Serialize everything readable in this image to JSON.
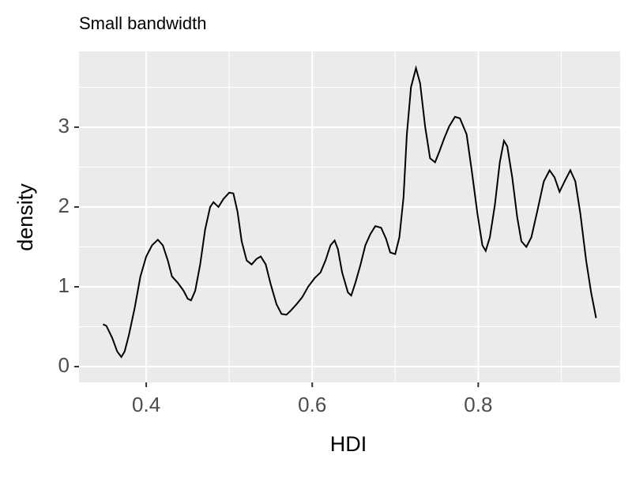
{
  "chart_data": {
    "type": "line",
    "title": "Small bandwidth",
    "xlabel": "HDI",
    "ylabel": "density",
    "x": [
      0.348,
      0.352,
      0.359,
      0.365,
      0.37,
      0.374,
      0.379,
      0.386,
      0.393,
      0.4,
      0.407,
      0.414,
      0.42,
      0.426,
      0.431,
      0.438,
      0.445,
      0.45,
      0.454,
      0.459,
      0.465,
      0.471,
      0.477,
      0.481,
      0.487,
      0.493,
      0.5,
      0.505,
      0.51,
      0.515,
      0.521,
      0.527,
      0.533,
      0.538,
      0.544,
      0.55,
      0.557,
      0.563,
      0.569,
      0.574,
      0.581,
      0.588,
      0.595,
      0.603,
      0.61,
      0.616,
      0.622,
      0.627,
      0.631,
      0.636,
      0.643,
      0.647,
      0.652,
      0.658,
      0.664,
      0.67,
      0.676,
      0.683,
      0.689,
      0.694,
      0.7,
      0.705,
      0.71,
      0.714,
      0.719,
      0.725,
      0.73,
      0.736,
      0.742,
      0.748,
      0.753,
      0.759,
      0.765,
      0.772,
      0.778,
      0.786,
      0.792,
      0.799,
      0.805,
      0.809,
      0.814,
      0.82,
      0.826,
      0.831,
      0.835,
      0.841,
      0.847,
      0.852,
      0.858,
      0.864,
      0.871,
      0.879,
      0.886,
      0.892,
      0.898,
      0.904,
      0.911,
      0.917,
      0.923,
      0.93,
      0.936,
      0.942
    ],
    "series": [
      {
        "name": "density",
        "color": "#000000",
        "values": [
          0.53,
          0.51,
          0.36,
          0.19,
          0.12,
          0.19,
          0.39,
          0.73,
          1.13,
          1.38,
          1.52,
          1.59,
          1.52,
          1.33,
          1.13,
          1.05,
          0.95,
          0.85,
          0.83,
          0.95,
          1.28,
          1.72,
          2.0,
          2.06,
          2.0,
          2.1,
          2.18,
          2.17,
          1.94,
          1.57,
          1.33,
          1.28,
          1.35,
          1.38,
          1.28,
          1.03,
          0.78,
          0.66,
          0.65,
          0.7,
          0.78,
          0.87,
          1.0,
          1.11,
          1.18,
          1.33,
          1.52,
          1.58,
          1.47,
          1.18,
          0.93,
          0.89,
          1.05,
          1.27,
          1.52,
          1.66,
          1.76,
          1.74,
          1.6,
          1.43,
          1.41,
          1.62,
          2.12,
          2.91,
          3.5,
          3.74,
          3.55,
          3.01,
          2.61,
          2.56,
          2.69,
          2.86,
          3.01,
          3.13,
          3.11,
          2.91,
          2.47,
          1.92,
          1.52,
          1.45,
          1.62,
          2.02,
          2.56,
          2.83,
          2.76,
          2.37,
          1.87,
          1.57,
          1.5,
          1.62,
          1.94,
          2.32,
          2.46,
          2.37,
          2.19,
          2.32,
          2.46,
          2.32,
          1.92,
          1.33,
          0.93,
          0.61
        ]
      }
    ],
    "xlim": [
      0.319,
      0.971
    ],
    "ylim": [
      -0.198,
      3.95
    ],
    "xticks": [
      0.4,
      0.6,
      0.8
    ],
    "yticks": [
      0,
      1,
      2,
      3
    ],
    "grid": true
  }
}
